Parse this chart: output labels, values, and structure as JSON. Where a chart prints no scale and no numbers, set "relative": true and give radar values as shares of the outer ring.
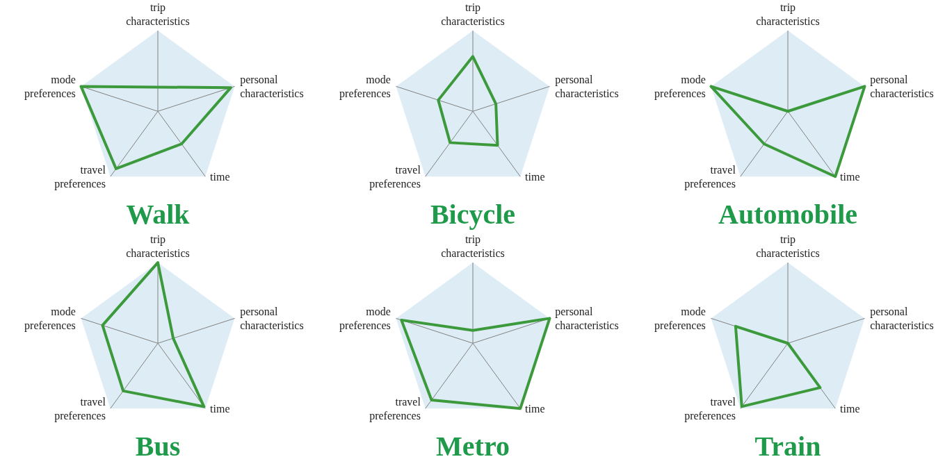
{
  "chart_data": [
    {
      "type": "radar",
      "title": "Walk",
      "relative": true,
      "categories": [
        "trip characteristics",
        "personal characteristics",
        "time",
        "travel preferences",
        "mode preferences"
      ],
      "series": [
        {
          "color": "#3c9a3c",
          "values": [
            0.3,
            0.95,
            0.5,
            0.88,
            1.0
          ]
        }
      ]
    },
    {
      "type": "radar",
      "title": "Bicycle",
      "relative": true,
      "categories": [
        "trip characteristics",
        "personal characteristics",
        "time",
        "travel preferences",
        "mode preferences"
      ],
      "series": [
        {
          "color": "#3c9a3c",
          "values": [
            0.68,
            0.3,
            0.52,
            0.48,
            0.45
          ]
        }
      ]
    },
    {
      "type": "radar",
      "title": "Automobile",
      "relative": true,
      "categories": [
        "trip characteristics",
        "personal characteristics",
        "time",
        "travel preferences",
        "mode preferences"
      ],
      "series": [
        {
          "color": "#3c9a3c",
          "values": [
            0.0,
            1.0,
            1.0,
            0.5,
            1.0
          ]
        }
      ]
    },
    {
      "type": "radar",
      "title": "Bus",
      "relative": true,
      "categories": [
        "trip characteristics",
        "personal characteristics",
        "time",
        "travel preferences",
        "mode preferences"
      ],
      "series": [
        {
          "color": "#3c9a3c",
          "values": [
            1.0,
            0.2,
            0.97,
            0.73,
            0.72
          ]
        }
      ]
    },
    {
      "type": "radar",
      "title": "Metro",
      "relative": true,
      "categories": [
        "trip characteristics",
        "personal characteristics",
        "time",
        "travel preferences",
        "mode preferences"
      ],
      "series": [
        {
          "color": "#3c9a3c",
          "values": [
            0.16,
            1.0,
            1.0,
            0.87,
            0.93
          ]
        }
      ]
    },
    {
      "type": "radar",
      "title": "Train",
      "relative": true,
      "categories": [
        "trip characteristics",
        "personal characteristics",
        "time",
        "travel preferences",
        "mode preferences"
      ],
      "series": [
        {
          "color": "#3c9a3c",
          "values": [
            0.0,
            0.0,
            0.68,
            0.97,
            0.68
          ]
        }
      ]
    }
  ]
}
